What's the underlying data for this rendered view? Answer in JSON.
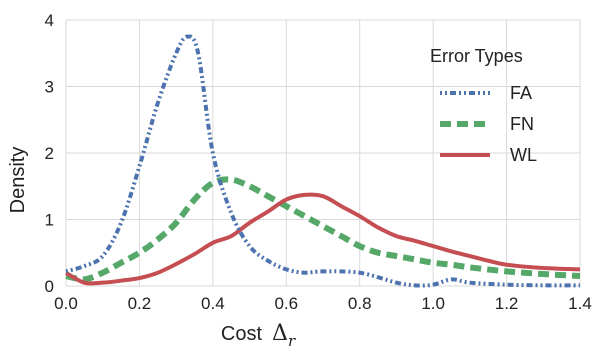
{
  "chart_data": {
    "type": "line",
    "xlabel": "Cost",
    "xlabel_symbol": "Δ",
    "xlabel_subscript": "r",
    "ylabel": "Density",
    "xlim": [
      0.0,
      1.4
    ],
    "ylim": [
      0,
      4
    ],
    "xticks": [
      "0.0",
      "0.2",
      "0.4",
      "0.6",
      "0.8",
      "1.0",
      "1.2",
      "1.4"
    ],
    "yticks": [
      "0",
      "1",
      "2",
      "3",
      "4"
    ],
    "grid": true,
    "legend": {
      "title": "Error Types",
      "placement": "top-right"
    },
    "series": [
      {
        "name": "FA",
        "color": "#4c72b0",
        "style": "dash-dot",
        "x": [
          0.0,
          0.05,
          0.1,
          0.15,
          0.2,
          0.25,
          0.3,
          0.33,
          0.36,
          0.4,
          0.45,
          0.5,
          0.55,
          0.6,
          0.65,
          0.7,
          0.8,
          0.9,
          0.95,
          1.0,
          1.05,
          1.1,
          1.2,
          1.3,
          1.4
        ],
        "y": [
          0.22,
          0.3,
          0.45,
          0.95,
          1.8,
          2.75,
          3.5,
          3.75,
          3.5,
          2.0,
          1.1,
          0.6,
          0.38,
          0.25,
          0.2,
          0.22,
          0.2,
          0.05,
          0.01,
          0.02,
          0.1,
          0.05,
          0.02,
          0.01,
          0.01
        ]
      },
      {
        "name": "FN",
        "color": "#55a868",
        "style": "dashed",
        "x": [
          0.0,
          0.05,
          0.1,
          0.15,
          0.2,
          0.25,
          0.3,
          0.35,
          0.4,
          0.45,
          0.5,
          0.55,
          0.6,
          0.65,
          0.7,
          0.75,
          0.8,
          0.85,
          0.9,
          0.95,
          1.0,
          1.05,
          1.1,
          1.2,
          1.3,
          1.4
        ],
        "y": [
          0.15,
          0.1,
          0.2,
          0.35,
          0.5,
          0.7,
          0.95,
          1.3,
          1.55,
          1.6,
          1.5,
          1.35,
          1.2,
          1.05,
          0.9,
          0.75,
          0.6,
          0.5,
          0.45,
          0.4,
          0.35,
          0.32,
          0.28,
          0.22,
          0.18,
          0.15
        ]
      },
      {
        "name": "WL",
        "color": "#c44e52",
        "style": "solid",
        "x": [
          0.0,
          0.05,
          0.1,
          0.15,
          0.2,
          0.25,
          0.3,
          0.35,
          0.4,
          0.45,
          0.5,
          0.55,
          0.6,
          0.65,
          0.7,
          0.75,
          0.8,
          0.85,
          0.9,
          0.95,
          1.0,
          1.05,
          1.1,
          1.15,
          1.2,
          1.3,
          1.4
        ],
        "y": [
          0.2,
          0.05,
          0.05,
          0.08,
          0.12,
          0.2,
          0.33,
          0.48,
          0.65,
          0.75,
          0.95,
          1.12,
          1.3,
          1.37,
          1.35,
          1.2,
          1.05,
          0.88,
          0.75,
          0.68,
          0.6,
          0.52,
          0.45,
          0.38,
          0.32,
          0.27,
          0.25
        ]
      }
    ]
  }
}
